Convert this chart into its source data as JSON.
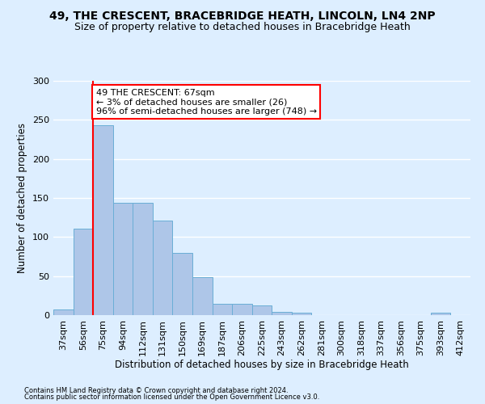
{
  "title1": "49, THE CRESCENT, BRACEBRIDGE HEATH, LINCOLN, LN4 2NP",
  "title2": "Size of property relative to detached houses in Bracebridge Heath",
  "xlabel": "Distribution of detached houses by size in Bracebridge Heath",
  "ylabel": "Number of detached properties",
  "footnote1": "Contains HM Land Registry data © Crown copyright and database right 2024.",
  "footnote2": "Contains public sector information licensed under the Open Government Licence v3.0.",
  "categories": [
    "37sqm",
    "56sqm",
    "75sqm",
    "94sqm",
    "112sqm",
    "131sqm",
    "150sqm",
    "169sqm",
    "187sqm",
    "206sqm",
    "225sqm",
    "243sqm",
    "262sqm",
    "281sqm",
    "300sqm",
    "318sqm",
    "337sqm",
    "356sqm",
    "375sqm",
    "393sqm",
    "412sqm"
  ],
  "values": [
    7,
    111,
    243,
    144,
    144,
    121,
    80,
    49,
    15,
    14,
    12,
    4,
    3,
    0,
    0,
    0,
    0,
    0,
    0,
    3,
    0
  ],
  "bar_color": "#aec6e8",
  "bar_edgecolor": "#6aaed6",
  "vline_color": "red",
  "annotation_text": "49 THE CRESCENT: 67sqm\n← 3% of detached houses are smaller (26)\n96% of semi-detached houses are larger (748) →",
  "annotation_box_color": "white",
  "annotation_box_edgecolor": "red",
  "ylim": [
    0,
    300
  ],
  "yticks": [
    0,
    50,
    100,
    150,
    200,
    250,
    300
  ],
  "bg_color": "#ddeeff",
  "plot_bg_color": "#ddeeff",
  "grid_color": "white",
  "title1_fontsize": 10,
  "title2_fontsize": 9,
  "bar_width": 1.0,
  "vline_pos": 1.5
}
